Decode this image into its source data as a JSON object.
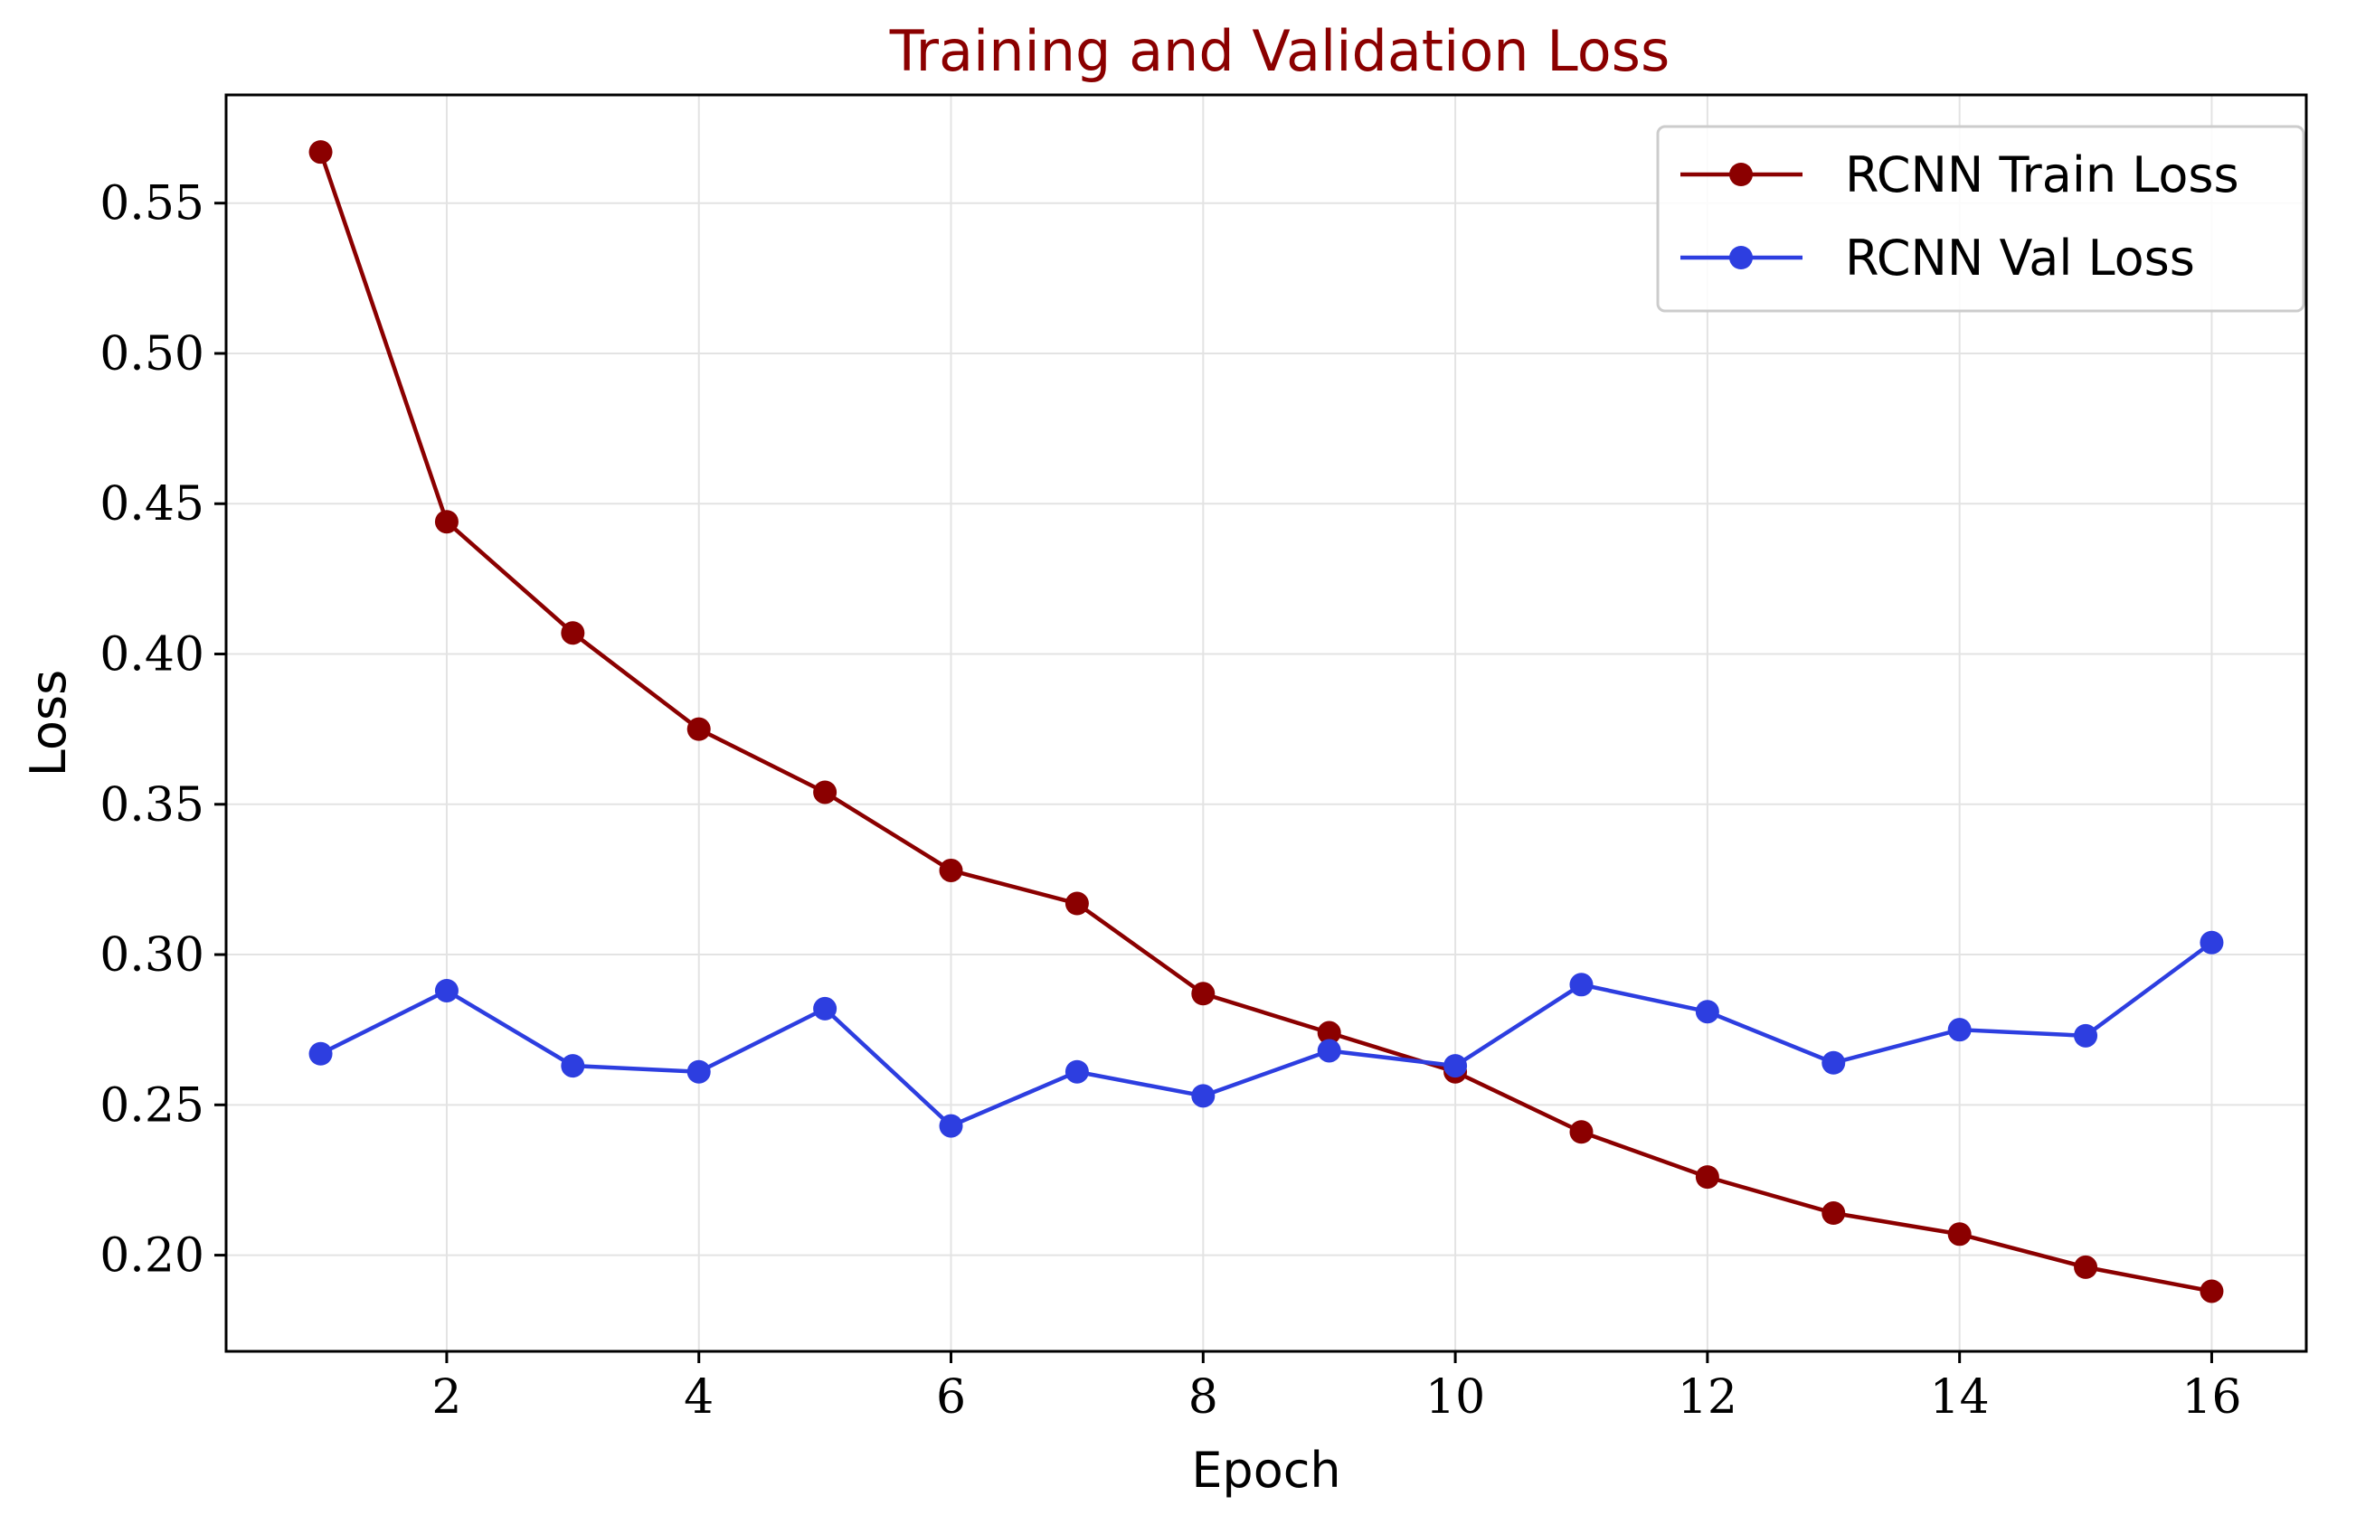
{
  "chart_data": {
    "type": "line",
    "title": "Training and Validation Loss",
    "xlabel": "Epoch",
    "ylabel": "Loss",
    "x": [
      1,
      2,
      3,
      4,
      5,
      6,
      7,
      8,
      9,
      10,
      11,
      12,
      13,
      14,
      15,
      16
    ],
    "xlim": [
      0.25,
      16.75
    ],
    "ylim": [
      0.168,
      0.586
    ],
    "xticks": [
      2,
      4,
      6,
      8,
      10,
      12,
      14,
      16
    ],
    "xtick_labels": [
      "2",
      "4",
      "6",
      "8",
      "10",
      "12",
      "14",
      "16"
    ],
    "yticks": [
      0.2,
      0.25,
      0.3,
      0.35,
      0.4,
      0.45,
      0.5,
      0.55
    ],
    "ytick_labels": [
      "0.20",
      "0.25",
      "0.30",
      "0.35",
      "0.40",
      "0.45",
      "0.50",
      "0.55"
    ],
    "grid": true,
    "legend_position": "top-right",
    "series": [
      {
        "name": "RCNN Train Loss",
        "color": "#8b0000",
        "marker": "circle",
        "values": [
          0.567,
          0.444,
          0.407,
          0.375,
          0.354,
          0.328,
          0.317,
          0.287,
          0.274,
          0.261,
          0.241,
          0.226,
          0.214,
          0.207,
          0.196,
          0.188
        ]
      },
      {
        "name": "RCNN Val Loss",
        "color": "#2d3ee0",
        "marker": "circle",
        "values": [
          0.267,
          0.288,
          0.263,
          0.261,
          0.282,
          0.243,
          0.261,
          0.253,
          0.268,
          0.263,
          0.29,
          0.281,
          0.264,
          0.275,
          0.273,
          0.304
        ]
      }
    ]
  },
  "colors": {
    "title": "#8b0000",
    "grid": "#e3e3e3",
    "axes": "#000000"
  }
}
